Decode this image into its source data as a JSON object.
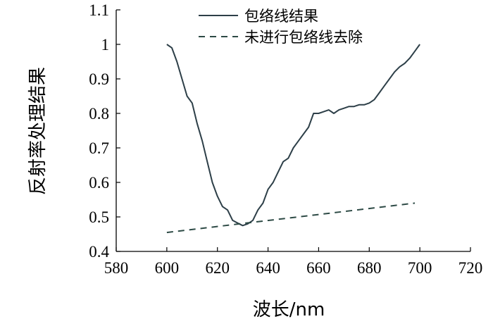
{
  "chart_data": {
    "type": "line",
    "xlabel": "波长/nm",
    "ylabel": "反射率处理结果",
    "xlim": [
      580,
      720
    ],
    "ylim": [
      0.4,
      1.1
    ],
    "x_ticks": [
      580,
      600,
      620,
      640,
      660,
      680,
      700,
      720
    ],
    "y_ticks": [
      0.4,
      0.5,
      0.6,
      0.7,
      0.8,
      0.9,
      1,
      1.1
    ],
    "x_tick_labels": [
      "580",
      "600",
      "620",
      "640",
      "660",
      "680",
      "700",
      "720"
    ],
    "y_tick_labels": [
      "0.4",
      "0.5",
      "0.6",
      "0.7",
      "0.8",
      "0.9",
      "1",
      "1.1"
    ],
    "legend_position": "top-right",
    "grid": false,
    "series": [
      {
        "name": "包络线结果",
        "style": "solid",
        "color": "#2d3f48",
        "x": [
          600,
          602,
          604,
          606,
          608,
          610,
          612,
          614,
          616,
          618,
          620,
          622,
          624,
          626,
          628,
          630,
          632,
          634,
          636,
          638,
          640,
          642,
          644,
          646,
          648,
          650,
          652,
          654,
          656,
          658,
          660,
          662,
          664,
          666,
          668,
          670,
          672,
          674,
          676,
          678,
          680,
          682,
          684,
          686,
          688,
          690,
          692,
          694,
          696,
          698,
          700
        ],
        "y": [
          1.0,
          0.99,
          0.95,
          0.9,
          0.85,
          0.83,
          0.77,
          0.72,
          0.66,
          0.6,
          0.56,
          0.53,
          0.52,
          0.49,
          0.482,
          0.475,
          0.48,
          0.49,
          0.52,
          0.54,
          0.58,
          0.6,
          0.63,
          0.66,
          0.67,
          0.7,
          0.72,
          0.74,
          0.76,
          0.8,
          0.8,
          0.805,
          0.81,
          0.8,
          0.81,
          0.815,
          0.82,
          0.82,
          0.825,
          0.825,
          0.83,
          0.84,
          0.86,
          0.88,
          0.9,
          0.92,
          0.935,
          0.945,
          0.96,
          0.98,
          1.0
        ]
      },
      {
        "name": "未进行包络线去除",
        "style": "dashed",
        "color": "#2d4a45",
        "x": [
          600,
          698
        ],
        "y": [
          0.455,
          0.54
        ]
      }
    ]
  }
}
